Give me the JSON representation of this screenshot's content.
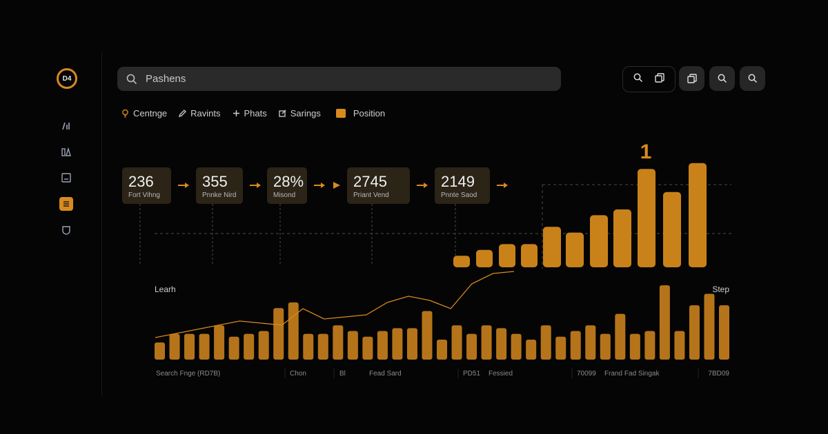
{
  "app": {
    "logo_text": "D4"
  },
  "search": {
    "value": "Pashens"
  },
  "tabs": [
    {
      "label": "Centnge",
      "icon": "bulb-icon"
    },
    {
      "label": "Ravints",
      "icon": "pen-icon"
    },
    {
      "label": "Phats",
      "icon": "plus-icon"
    },
    {
      "label": "Sarings",
      "icon": "edit-icon"
    },
    {
      "label": "Position",
      "icon": "folder-icon"
    }
  ],
  "toolbar": {
    "icons": [
      "search-icon",
      "copy-icon",
      "copy-icon",
      "search-icon",
      "search-icon"
    ]
  },
  "colors": {
    "accent": "#d98a1f",
    "background": "#050505",
    "surface": "#2a2a2a"
  },
  "chart_data": {
    "type": "bar",
    "stats": [
      {
        "value": "236",
        "label": "Fort Vihng"
      },
      {
        "value": "355",
        "label": "Pnnke Nird"
      },
      {
        "value": "28%",
        "label": "Misond"
      },
      {
        "value": "2745",
        "label": "Priant Vend"
      },
      {
        "value": "2149",
        "label": "Pnnte Saod"
      }
    ],
    "annotation": "1",
    "upper_bars": [
      2,
      3,
      4,
      4,
      7,
      6,
      9,
      10,
      17,
      13,
      18
    ],
    "lower_bars": [
      3,
      4.5,
      4.5,
      4.5,
      6,
      4,
      4.5,
      5,
      9,
      10,
      4.5,
      4.5,
      6,
      5,
      4,
      5,
      5.5,
      5.5,
      8.5,
      3.5,
      6,
      4.5,
      6,
      5.5,
      4.5,
      3.5,
      6,
      4,
      5,
      6,
      4.5,
      8,
      4.5,
      5,
      13,
      5,
      9.5,
      11.5,
      9.5
    ],
    "line": [
      0.8,
      1.2,
      1.6,
      2,
      2.4,
      2.2,
      2,
      3.6,
      2.6,
      2.8,
      3,
      4.2,
      4.8,
      4.4,
      3.6,
      6,
      7,
      7.2
    ],
    "ylabel_left": "Learh",
    "ylabel_right": "Step",
    "footer": [
      "Search Fnge (RD7B)",
      "Chon",
      "Bl",
      "Fead Sard",
      "PD51",
      "Fessied",
      "70099",
      "Frand Fad Singak",
      "7BD09"
    ]
  }
}
